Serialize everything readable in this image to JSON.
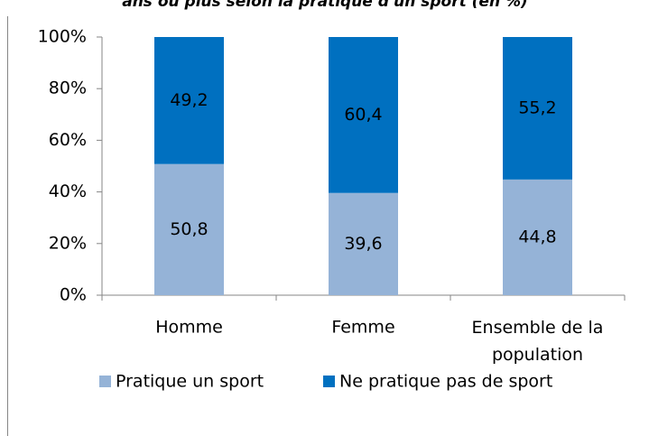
{
  "chart_data": {
    "type": "stacked_bar",
    "title": "ans ou plus selon la pratique d'un sport (en %)",
    "categories": [
      "Homme",
      "Femme",
      "Ensemble de la population"
    ],
    "series": [
      {
        "name": "Pratique un sport",
        "color": "#95b3d7",
        "values": [
          50.8,
          39.6,
          44.8
        ],
        "value_labels": [
          "50,8",
          "39,6",
          "44,8"
        ]
      },
      {
        "name": "Ne pratique pas de sport",
        "color": "#0070c0",
        "values": [
          49.2,
          60.4,
          55.2
        ],
        "value_labels": [
          "49,2",
          "60,4",
          "55,2"
        ]
      }
    ],
    "ylim": [
      0,
      100
    ],
    "yticks": [
      {
        "value": 0,
        "label": "0%"
      },
      {
        "value": 20,
        "label": "20%"
      },
      {
        "value": 40,
        "label": "40%"
      },
      {
        "value": 60,
        "label": "60%"
      },
      {
        "value": 80,
        "label": "80%"
      },
      {
        "value": 100,
        "label": "100%"
      }
    ],
    "legend": "bottom"
  }
}
